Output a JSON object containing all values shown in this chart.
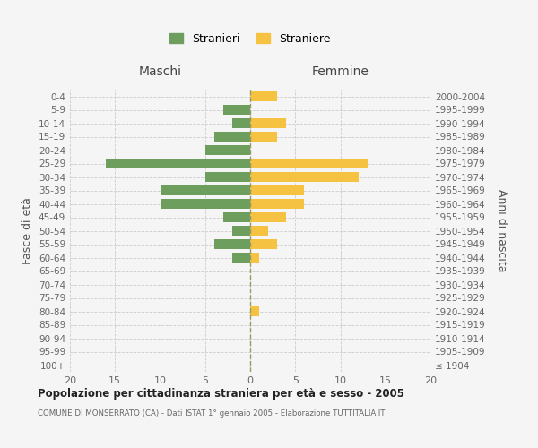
{
  "age_groups": [
    "100+",
    "95-99",
    "90-94",
    "85-89",
    "80-84",
    "75-79",
    "70-74",
    "65-69",
    "60-64",
    "55-59",
    "50-54",
    "45-49",
    "40-44",
    "35-39",
    "30-34",
    "25-29",
    "20-24",
    "15-19",
    "10-14",
    "5-9",
    "0-4"
  ],
  "birth_years": [
    "≤ 1904",
    "1905-1909",
    "1910-1914",
    "1915-1919",
    "1920-1924",
    "1925-1929",
    "1930-1934",
    "1935-1939",
    "1940-1944",
    "1945-1949",
    "1950-1954",
    "1955-1959",
    "1960-1964",
    "1965-1969",
    "1970-1974",
    "1975-1979",
    "1980-1984",
    "1985-1989",
    "1990-1994",
    "1995-1999",
    "2000-2004"
  ],
  "maschi": [
    0,
    0,
    0,
    0,
    0,
    0,
    0,
    0,
    2,
    4,
    2,
    3,
    10,
    10,
    5,
    16,
    5,
    4,
    2,
    3,
    0
  ],
  "femmine": [
    0,
    0,
    0,
    0,
    1,
    0,
    0,
    0,
    1,
    3,
    2,
    4,
    6,
    6,
    12,
    13,
    0,
    3,
    4,
    0,
    3
  ],
  "maschi_color": "#6d9e5e",
  "femmine_color": "#f5c242",
  "title": "Popolazione per cittadinanza straniera per età e sesso - 2005",
  "subtitle": "COMUNE DI MONSERRATO (CA) - Dati ISTAT 1° gennaio 2005 - Elaborazione TUTTITALIA.IT",
  "xlabel_left": "Maschi",
  "xlabel_right": "Femmine",
  "ylabel_left": "Fasce di età",
  "ylabel_right": "Anni di nascita",
  "legend_maschi": "Stranieri",
  "legend_femmine": "Straniere",
  "xlim": 20,
  "background_color": "#f5f5f5",
  "grid_color": "#cccccc"
}
